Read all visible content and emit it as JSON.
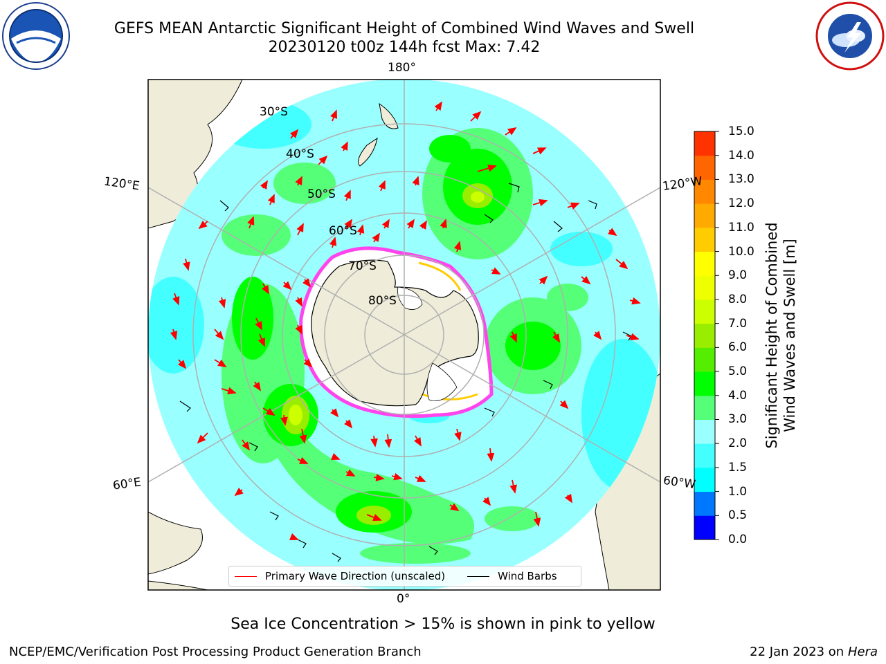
{
  "header": {
    "title": "GEFS MEAN Antarctic Significant Height of Combined Wind Waves and Swell",
    "subtitle": "20230120 t00z 144h fcst   Max: 7.42"
  },
  "logos": {
    "left": "noaa-logo",
    "right": "national-weather-service-logo"
  },
  "map": {
    "projection": "south-polar-stereographic",
    "longitude_labels": {
      "top": "180°",
      "bottom": "0°",
      "upper_left": "120°E",
      "upper_right": "120°W",
      "lower_left": "60°E",
      "lower_right": "60°W"
    },
    "latitude_labels": [
      "30°S",
      "40°S",
      "50°S",
      "60°S",
      "70°S",
      "80°S"
    ],
    "legend": {
      "primary_wave": "Primary Wave Direction (unscaled)",
      "wind_barbs": "Wind Barbs",
      "primary_wave_color": "#ff0000",
      "wind_barbs_color": "#000000"
    },
    "colors": {
      "land": "#efedd9",
      "ice": "#ffffff",
      "ice_edge": "#ff44ee",
      "grid": "#b0b0b0"
    }
  },
  "colorbar": {
    "title_line1": "Significant Height of Combined",
    "title_line2": "Wind Waves and Swell [m]",
    "ticks": [
      "15.0",
      "14.0",
      "13.0",
      "12.0",
      "11.0",
      "10.0",
      "9.0",
      "8.0",
      "7.0",
      "6.0",
      "5.0",
      "4.0",
      "3.0",
      "2.0",
      "1.5",
      "1.0",
      "0.5",
      "0.0"
    ],
    "colors_bottom_to_top": [
      "#0000ff",
      "#0077ff",
      "#00ffff",
      "#44ffff",
      "#99ffff",
      "#55ff77",
      "#00ff00",
      "#55ee00",
      "#99ee00",
      "#ccff00",
      "#eeff00",
      "#ffff00",
      "#ffcc00",
      "#ffaa00",
      "#ff8800",
      "#ff6600",
      "#ff3300"
    ]
  },
  "footnote": "Sea Ice Concentration > 15% is shown in pink to yellow",
  "footer": {
    "left": "NCEP/EMC/Verification Post Processing Product Generation Branch",
    "right_date": "22 Jan 2023 on ",
    "right_host": "Hera"
  }
}
